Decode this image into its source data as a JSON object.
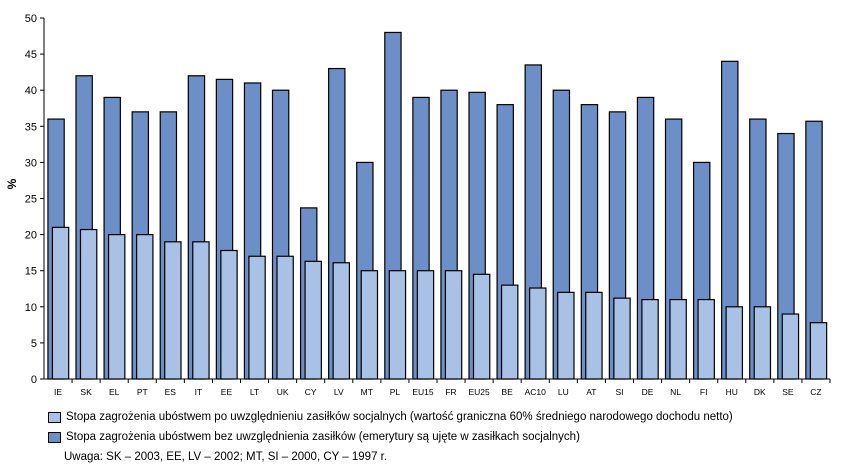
{
  "chart_data": {
    "type": "bar",
    "ylabel": "%",
    "ylim": [
      0,
      50
    ],
    "yticks": [
      0,
      5,
      10,
      15,
      20,
      25,
      30,
      35,
      40,
      45,
      50
    ],
    "categories": [
      "IE",
      "SK",
      "EL",
      "PT",
      "ES",
      "IT",
      "EE",
      "LT",
      "UK",
      "CY",
      "LV",
      "MT",
      "PL",
      "EU15",
      "FR",
      "EU25",
      "BE",
      "AC10",
      "LU",
      "AT",
      "SI",
      "DE",
      "NL",
      "FI",
      "HU",
      "DK",
      "SE",
      "CZ"
    ],
    "series": [
      {
        "name": "Stopa zagrożenia ubóstwem bez uwzględnienia zasiłków (emerytury są ujęte w zasiłkach socjalnych)",
        "color": "#6d8fc7",
        "values": [
          36,
          42,
          39,
          37,
          37,
          42,
          41.5,
          41,
          40,
          23.7,
          43,
          30,
          48,
          39,
          40,
          39.7,
          38,
          43.5,
          40,
          38,
          37,
          39,
          36,
          30,
          44,
          36,
          34,
          35.7
        ]
      },
      {
        "name": "Stopa zagrożenia ubóstwem po uwzględnieniu zasiłków socjalnych (wartość graniczna 60% średniego narodowego dochodu netto)",
        "color": "#a9c1e4",
        "values": [
          21,
          20.7,
          20,
          20,
          19,
          19,
          17.8,
          17,
          17,
          16.3,
          16.1,
          15,
          15,
          15,
          15,
          14.5,
          13,
          12.6,
          12,
          12,
          11.2,
          11,
          11,
          11,
          10,
          10,
          9,
          7.8
        ]
      }
    ],
    "legend_position": "bottom",
    "grid": false
  },
  "note": "Uwaga: SK – 2003, EE, LV – 2002; MT, SI – 2000, CY – 1997 r."
}
